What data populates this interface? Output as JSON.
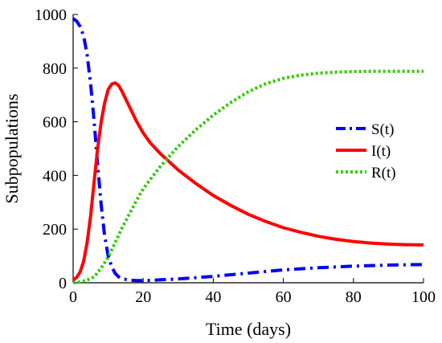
{
  "chart_data": {
    "type": "line",
    "xlabel": "Time (days)",
    "ylabel": "Subpopulations",
    "xlim": [
      0,
      100
    ],
    "ylim": [
      0,
      1000
    ],
    "xticks": [
      "0",
      "20",
      "40",
      "60",
      "80",
      "100"
    ],
    "yticks": [
      "0",
      "200",
      "400",
      "600",
      "800",
      "1000"
    ],
    "grid": false,
    "legend_position": "right",
    "series": [
      {
        "name": "S(t)",
        "color": "#0000ff",
        "style": "dashdot",
        "x": [
          0,
          1,
          2,
          3,
          4,
          5,
          6,
          7,
          8,
          9,
          10,
          11,
          12,
          13,
          14,
          16,
          18,
          20,
          22,
          25,
          30,
          40,
          50,
          60,
          70,
          80,
          90,
          100
        ],
        "y": [
          985,
          975,
          955,
          920,
          850,
          740,
          600,
          440,
          290,
          175,
          100,
          60,
          35,
          22,
          15,
          10,
          8,
          8,
          9,
          11,
          14,
          24,
          36,
          48,
          56,
          62,
          66,
          68
        ]
      },
      {
        "name": "I(t)",
        "color": "#ff0000",
        "style": "solid",
        "x": [
          0,
          1,
          2,
          3,
          4,
          5,
          6,
          7,
          8,
          9,
          10,
          11,
          12,
          13,
          14,
          15,
          16,
          18,
          20,
          22,
          25,
          30,
          35,
          40,
          45,
          50,
          55,
          60,
          65,
          70,
          75,
          80,
          85,
          90,
          95,
          100
        ],
        "y": [
          10,
          20,
          40,
          80,
          150,
          250,
          380,
          500,
          600,
          670,
          720,
          740,
          745,
          735,
          712,
          685,
          658,
          604,
          558,
          522,
          480,
          420,
          370,
          325,
          288,
          255,
          228,
          205,
          188,
          173,
          162,
          154,
          148,
          144,
          142,
          141
        ]
      },
      {
        "name": "R(t)",
        "color": "#33cc00",
        "style": "dotted",
        "x": [
          0,
          2,
          4,
          6,
          8,
          10,
          12,
          14,
          16,
          18,
          20,
          22,
          25,
          30,
          35,
          40,
          45,
          50,
          55,
          60,
          65,
          70,
          75,
          80,
          85,
          90,
          95,
          100
        ],
        "y": [
          0,
          3,
          10,
          22,
          55,
          95,
          150,
          205,
          255,
          305,
          350,
          385,
          435,
          508,
          570,
          625,
          672,
          712,
          742,
          762,
          774,
          781,
          785,
          787,
          788,
          788,
          788,
          788
        ]
      }
    ]
  }
}
